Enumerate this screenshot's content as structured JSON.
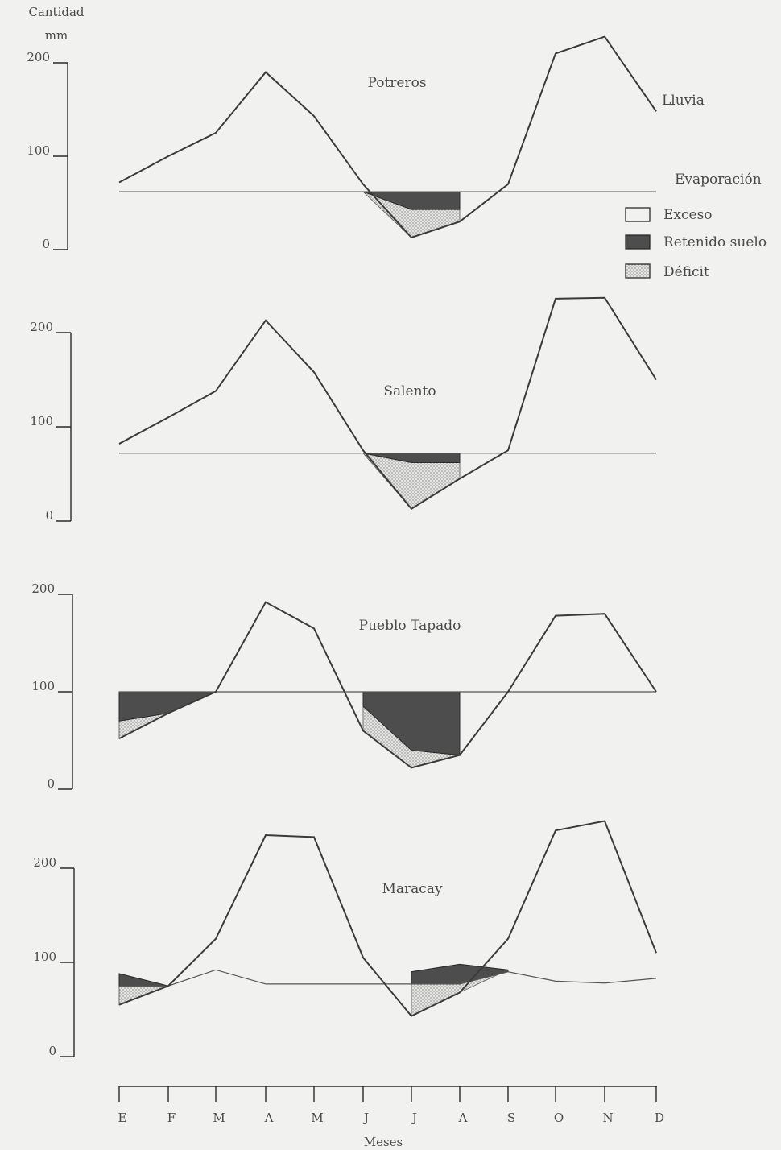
{
  "chart_data": {
    "type": "line",
    "y_axis_title": [
      "Cantidad",
      "mm"
    ],
    "xlabel": "Meses",
    "categories": [
      "E",
      "F",
      "M",
      "A",
      "M",
      "J",
      "J",
      "A",
      "S",
      "O",
      "N",
      "D"
    ],
    "y_ticks": [
      "200",
      "100",
      "0"
    ],
    "ylim": [
      0,
      200
    ],
    "legend": {
      "series_labels": [
        "Lluvia",
        "Evaporación"
      ],
      "fill_labels": [
        "Exceso",
        "Retenido suelo",
        "Déficit"
      ]
    },
    "colors": {
      "retenido": "#4d4d4d",
      "deficit": "#d8d8d8",
      "line": "#3a3a3a",
      "background": "#f1f1ef"
    },
    "panels": [
      {
        "title": "Potreros",
        "series": [
          {
            "name": "Lluvia",
            "values": [
              72,
              100,
              125,
              190,
              143,
              70,
              13,
              30,
              70,
              210,
              228,
              148
            ]
          },
          {
            "name": "Evaporación",
            "values": [
              62,
              62,
              62,
              62,
              62,
              62,
              62,
              62,
              62,
              62,
              62,
              62
            ]
          },
          {
            "name": "Retenido suelo",
            "values": [
              null,
              null,
              null,
              null,
              null,
              62,
              43,
              43,
              null,
              null,
              null,
              null
            ]
          }
        ]
      },
      {
        "title": "Salento",
        "series": [
          {
            "name": "Lluvia",
            "values": [
              82,
              110,
              138,
              213,
              158,
              75,
              13,
              45,
              75,
              236,
              237,
              150
            ]
          },
          {
            "name": "Evaporación",
            "values": [
              72,
              72,
              72,
              72,
              72,
              72,
              72,
              72,
              72,
              72,
              72,
              72
            ]
          },
          {
            "name": "Retenido suelo",
            "values": [
              null,
              null,
              null,
              null,
              null,
              72,
              62,
              62,
              null,
              null,
              null,
              null
            ]
          }
        ]
      },
      {
        "title": "Pueblo Tapado",
        "series": [
          {
            "name": "Lluvia",
            "values": [
              52,
              78,
              100,
              192,
              165,
              60,
              22,
              35,
              100,
              178,
              180,
              100
            ]
          },
          {
            "name": "Evaporación",
            "values": [
              100,
              100,
              100,
              100,
              100,
              100,
              100,
              100,
              100,
              100,
              100,
              100
            ]
          },
          {
            "name": "Retenido suelo",
            "values": [
              70,
              78,
              100,
              null,
              null,
              85,
              40,
              35,
              null,
              null,
              null,
              null
            ]
          }
        ]
      },
      {
        "title": "Maracay",
        "series": [
          {
            "name": "Lluvia",
            "values": [
              55,
              75,
              125,
              235,
              233,
              105,
              43,
              68,
              125,
              240,
              250,
              110
            ]
          },
          {
            "name": "Evaporación",
            "values": [
              75,
              75,
              92,
              77,
              77,
              77,
              77,
              77,
              90,
              80,
              78,
              83
            ]
          },
          {
            "name": "Retenido suelo",
            "values": [
              88,
              75,
              null,
              null,
              null,
              null,
              90,
              98,
              92,
              null,
              null,
              null
            ]
          }
        ]
      }
    ]
  }
}
